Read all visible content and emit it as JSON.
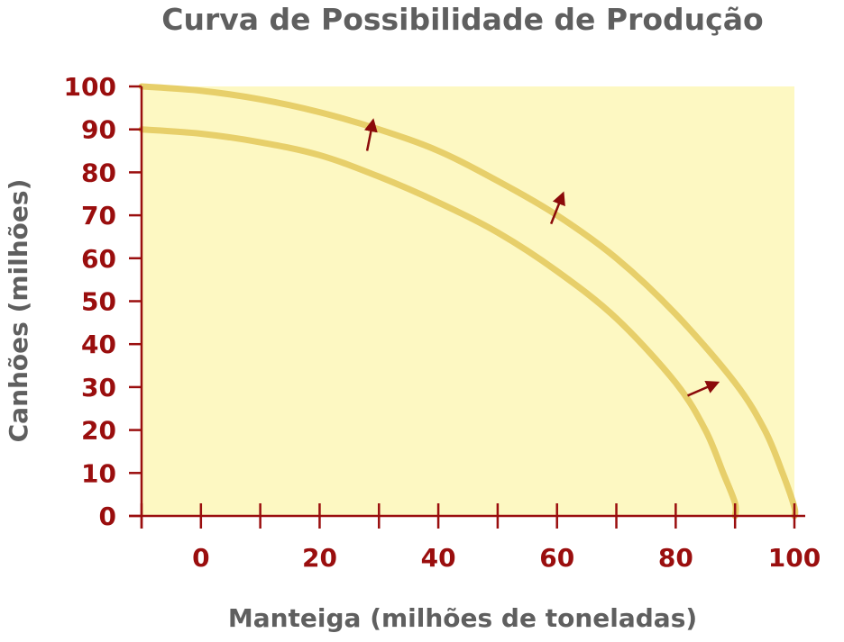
{
  "chart_data": {
    "type": "line",
    "title": "Curva de Possibilidade de Produção",
    "xlabel": "Manteiga (milhões de toneladas)",
    "ylabel": "Canhões (milhões)",
    "xlim": [
      -10,
      100
    ],
    "ylim": [
      0,
      100
    ],
    "x_tick_labels": [
      0,
      20,
      40,
      60,
      80,
      100
    ],
    "x_tick_marks": [
      -10,
      0,
      10,
      20,
      30,
      40,
      50,
      60,
      70,
      80,
      90,
      100
    ],
    "y_ticks": [
      0,
      10,
      20,
      30,
      40,
      50,
      60,
      70,
      80,
      90,
      100
    ],
    "series": [
      {
        "x": [
          -10,
          0,
          10,
          20,
          30,
          40,
          50,
          60,
          70,
          80,
          85,
          88,
          90,
          90
        ],
        "y": [
          90,
          89,
          87,
          84,
          79,
          73,
          66,
          57,
          46,
          31,
          20,
          10,
          3,
          0
        ]
      },
      {
        "x": [
          -10,
          0,
          10,
          20,
          30,
          40,
          50,
          60,
          70,
          80,
          90,
          95,
          98,
          100,
          100
        ],
        "y": [
          100,
          99,
          97,
          94,
          90,
          85,
          78,
          70,
          60,
          47,
          31,
          20,
          10,
          2,
          0
        ]
      }
    ],
    "arrows": [
      {
        "from": [
          28,
          85
        ],
        "to": [
          29,
          92
        ]
      },
      {
        "from": [
          59,
          68
        ],
        "to": [
          61,
          75
        ]
      },
      {
        "from": [
          82,
          28
        ],
        "to": [
          87,
          31
        ]
      }
    ],
    "colors": {
      "plot_background": "#fdf8c2",
      "curve": "#e7cf6a",
      "tick_text": "#9a0e0e",
      "axis": "#9a0e0e",
      "arrow": "#8b0a0a",
      "label_text": "#5f5f5f"
    }
  }
}
